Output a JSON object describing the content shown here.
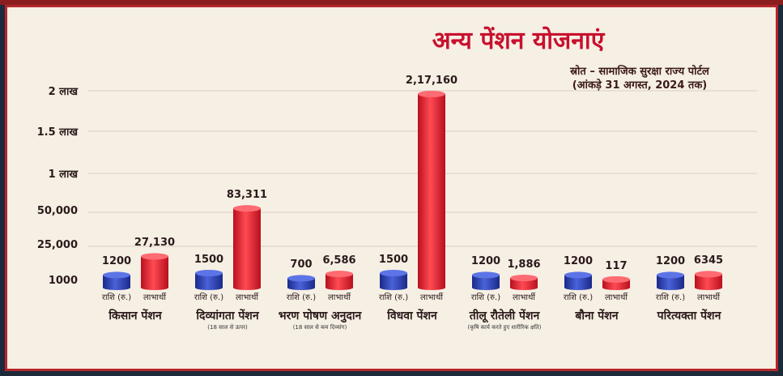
{
  "title": "अन्य पेंशन योजनाएं",
  "source_line1": "स्रोत – सामाजिक सुरक्षा राज्य पोर्टल",
  "source_line2": "(आंकड़े 31 अगस्त, 2024 तक)",
  "colors": {
    "amount": "#2a3fb0",
    "beneficiaries": "#e8192c",
    "frame": "#b3262a",
    "title": "#c8102e"
  },
  "chart_data": {
    "type": "bar",
    "y_ticks": [
      "1000",
      "25,000",
      "50,000",
      "1 लाख",
      "1.5 लाख",
      "2 लाख"
    ],
    "bar_labels": {
      "amount": "राशि (रु.)",
      "beneficiaries": "लाभार्थी"
    },
    "categories": [
      {
        "name": "किसान पेंशन",
        "note": "",
        "amount": 1200,
        "amount_label": "1200",
        "beneficiaries": 27130,
        "beneficiaries_label": "27,130"
      },
      {
        "name": "दिव्यांगता पेंशन",
        "note": "(18 साल से ऊपर)",
        "amount": 1500,
        "amount_label": "1500",
        "beneficiaries": 83311,
        "beneficiaries_label": "83,311"
      },
      {
        "name": "भरण पोषण अनुदान",
        "note": "(18 साल से कम दिव्यांग)",
        "amount": 700,
        "amount_label": "700",
        "beneficiaries": 6586,
        "beneficiaries_label": "6,586"
      },
      {
        "name": "विधवा पेंशन",
        "note": "",
        "amount": 1500,
        "amount_label": "1500",
        "beneficiaries": 217160,
        "beneficiaries_label": "2,17,160"
      },
      {
        "name": "तीलू रौतेली पेंशन",
        "note": "(कृषि कार्य करते हुए शारीरिक क्षति)",
        "amount": 1200,
        "amount_label": "1200",
        "beneficiaries": 1886,
        "beneficiaries_label": "1,886"
      },
      {
        "name": "बौना पेंशन",
        "note": "",
        "amount": 1200,
        "amount_label": "1200",
        "beneficiaries": 117,
        "beneficiaries_label": "117"
      },
      {
        "name": "परित्यक्ता पेंशन",
        "note": "",
        "amount": 1200,
        "amount_label": "1200",
        "beneficiaries": 6345,
        "beneficiaries_label": "6345"
      }
    ]
  }
}
